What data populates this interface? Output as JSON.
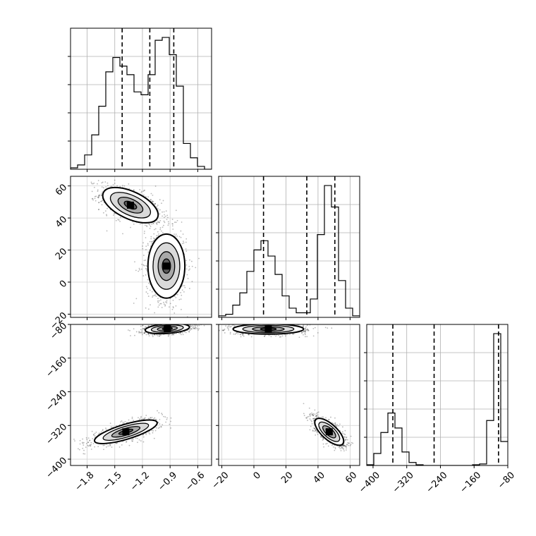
{
  "chart_data": [
    {
      "type": "histogram",
      "panel": "diag-0",
      "variable_index": 0,
      "x_range": [
        -1.98,
        -0.45
      ],
      "x_ticks": [
        -1.8,
        -1.5,
        -1.2,
        -0.9,
        -0.6
      ],
      "x_tick_labels": [
        "−1.8",
        "−1.5",
        "−1.2",
        "−0.9",
        "−0.6"
      ],
      "y_tick_labels_shown": false,
      "grid": true,
      "dashed_lines": [
        -1.42,
        -1.12,
        -0.86
      ],
      "bin_edges": [
        -1.98,
        -1.9035,
        -1.827,
        -1.7505,
        -1.674,
        -1.5975,
        -1.521,
        -1.4445,
        -1.368,
        -1.2915,
        -1.215,
        -1.1385,
        -1.062,
        -0.9855,
        -0.909,
        -0.8325,
        -0.756,
        -0.6795,
        -0.603,
        -0.5265,
        -0.45
      ],
      "counts": [
        0.5,
        1.5,
        5,
        12,
        22,
        34,
        39,
        36,
        33,
        27,
        26,
        33,
        45,
        46,
        40,
        29,
        9,
        4,
        1,
        0
      ]
    },
    {
      "type": "histogram",
      "panel": "diag-1",
      "variable_index": 1,
      "x_range": [
        -22,
        66
      ],
      "x_ticks": [
        -20,
        0,
        20,
        40,
        60
      ],
      "x_tick_labels": [
        "−20",
        "0",
        "20",
        "40",
        "60"
      ],
      "y_tick_labels_shown": false,
      "grid": true,
      "dashed_lines": [
        6,
        33,
        50.5
      ],
      "bin_edges": [
        -22,
        -17.6,
        -13.2,
        -8.8,
        -4.4,
        0,
        4.4,
        8.8,
        13.2,
        17.6,
        22,
        26.4,
        30.8,
        35.2,
        39.6,
        44,
        48.4,
        52.8,
        57.2,
        61.6,
        66
      ],
      "counts": [
        0.5,
        1,
        4,
        8,
        15,
        22,
        25,
        20,
        14,
        7,
        3,
        1.5,
        1.5,
        6,
        27,
        43,
        36,
        12,
        3,
        0.5
      ]
    },
    {
      "type": "histogram",
      "panel": "diag-2",
      "variable_index": 2,
      "x_range": [
        -415,
        -80
      ],
      "x_ticks": [
        -400,
        -320,
        -240,
        -160,
        -80
      ],
      "x_tick_labels": [
        "−400",
        "−320",
        "−240",
        "−160",
        "−80"
      ],
      "y_tick_labels_shown": false,
      "grid": true,
      "dashed_lines": [
        -353,
        -255,
        -102
      ],
      "bin_edges": [
        -415,
        -398.25,
        -381.5,
        -364.75,
        -348,
        -331.25,
        -314.5,
        -297.75,
        -281,
        -264.25,
        -247.5,
        -230.75,
        -214,
        -197.25,
        -180.5,
        -163.75,
        -147,
        -130.25,
        -113.5,
        -96.75,
        -80
      ],
      "counts": [
        0.5,
        8,
        22,
        35,
        25,
        9,
        2,
        0.5,
        0,
        0,
        0,
        0,
        0,
        0,
        0,
        0.5,
        1,
        30,
        88,
        16
      ]
    },
    {
      "type": "scatter",
      "panel": "var1-vs-var0",
      "x_variable": 0,
      "y_variable": 1,
      "x_range": [
        -1.98,
        -0.45
      ],
      "y_range": [
        -22,
        66
      ],
      "y_ticks": [
        -20,
        0,
        20,
        40,
        60
      ],
      "y_tick_labels": [
        "−20",
        "0",
        "20",
        "40",
        "60"
      ],
      "clusters": [
        {
          "center": [
            -1.33,
            48
          ],
          "spread": [
            0.15,
            5.5
          ],
          "correlation": -0.55
        },
        {
          "center": [
            -0.94,
            10
          ],
          "spread": [
            0.1,
            10
          ],
          "correlation": 0
        }
      ],
      "contours": "density levels drawn as nested ellipses"
    },
    {
      "type": "scatter",
      "panel": "var2-vs-var0",
      "x_variable": 0,
      "y_variable": 2,
      "x_range": [
        -1.98,
        -0.45
      ],
      "y_range": [
        -415,
        -80
      ],
      "y_ticks": [
        -400,
        -320,
        -240,
        -160,
        -80
      ],
      "y_tick_labels": [
        "−400",
        "−320",
        "−240",
        "−160",
        "−80"
      ],
      "clusters": [
        {
          "center": [
            -0.93,
            -90
          ],
          "spread": [
            0.12,
            6
          ],
          "correlation": 0.3
        },
        {
          "center": [
            -1.38,
            -335
          ],
          "spread": [
            0.17,
            14
          ],
          "correlation": 0.75
        }
      ],
      "contours": "density levels drawn as nested ellipses"
    },
    {
      "type": "scatter",
      "panel": "var2-vs-var1",
      "x_variable": 1,
      "y_variable": 2,
      "x_range": [
        -22,
        66
      ],
      "y_range": [
        -415,
        -80
      ],
      "clusters": [
        {
          "center": [
            9,
            -91
          ],
          "spread": [
            11,
            6
          ],
          "correlation": 0
        },
        {
          "center": [
            47,
            -335
          ],
          "spread": [
            4.5,
            16
          ],
          "correlation": -0.7
        }
      ],
      "contours": "density levels drawn as nested ellipses"
    }
  ]
}
